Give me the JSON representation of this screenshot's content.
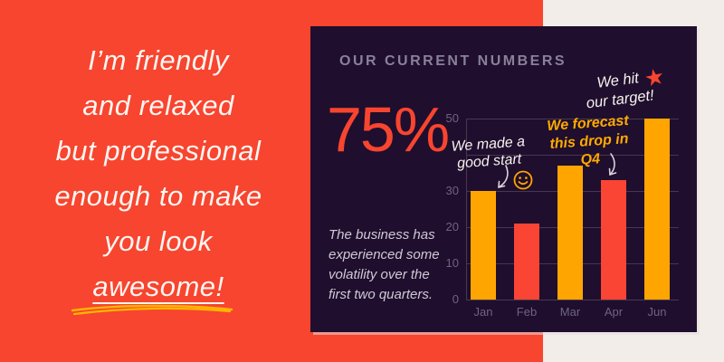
{
  "page": {
    "background": "#F3EDE9"
  },
  "intro_panel": {
    "background": "#F7452F",
    "text_color": "#FBF5F1",
    "lines": [
      "I’m friendly",
      "and relaxed",
      "but professional",
      "enough to make",
      "you look",
      "awesome!"
    ],
    "highlight_word": "awesome!",
    "underline_color": "#FFB501"
  },
  "stats_card": {
    "background": "#1F0E2D",
    "title": "OUR CURRENT NUMBERS",
    "title_color": "#89809A",
    "stat_value": "75%",
    "stat_color": "#F7452F",
    "description": "The business has\nexperienced some\nvolatility over the\nfirst two quarters.",
    "description_color": "#CFC9D6"
  },
  "chart_data": {
    "type": "bar",
    "categories": [
      "Jan",
      "Feb",
      "Mar",
      "Apr",
      "Jun"
    ],
    "values": [
      30,
      21,
      37,
      33,
      50
    ],
    "bar_colors": [
      "#FFA502",
      "#FA4434",
      "#FFA502",
      "#FA4434",
      "#FFA502"
    ],
    "ylim": [
      0,
      50
    ],
    "ytick_step": 10,
    "ytick_labels_visible": [
      50,
      30,
      20,
      10,
      0
    ],
    "grid": true,
    "gridline_color": "#463850",
    "axis_label_color": "#6F6480",
    "legend": "none",
    "annotations": [
      {
        "id": "good-start",
        "text": "We made a\ngood start",
        "color": "#F7F2EE",
        "points_to": "Jan"
      },
      {
        "id": "forecast",
        "text": "We forecast\nthis drop in Q4",
        "color": "#FFAA00",
        "points_to": "Apr"
      },
      {
        "id": "target",
        "text": "We hit\nour target!",
        "color": "#F7F2EE",
        "points_to": "Jun"
      }
    ],
    "icons": {
      "smiley": {
        "name": "smiley-icon",
        "color": "#FFA502"
      },
      "star": {
        "name": "star-icon",
        "glyph": "★",
        "color": "#F7452F"
      }
    }
  }
}
